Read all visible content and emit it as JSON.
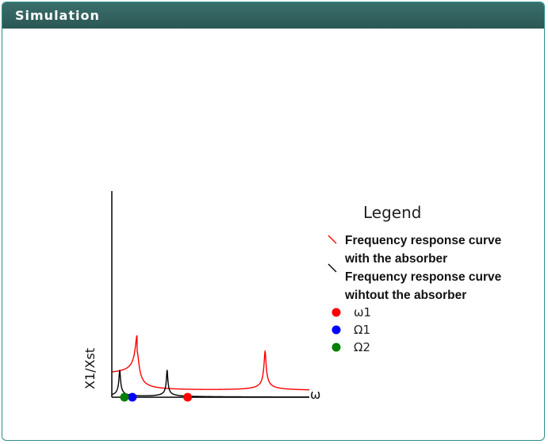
{
  "panel": {
    "title": "Simulation"
  },
  "chart_data": {
    "type": "line",
    "xlabel": "ω",
    "ylabel": "X1/Xst",
    "legend": {
      "title": "Legend",
      "placement": "right",
      "lines": [
        {
          "text1": "Frequency response curve",
          "text2": "with the absorber",
          "color": "#ff0000"
        },
        {
          "text1": "Frequency response curve",
          "text2": "wihtout the absorber",
          "color": "#000000"
        }
      ],
      "markers": [
        {
          "label": "ω1",
          "color": "#ff0000"
        },
        {
          "label": "Ω1",
          "color": "#0000ff"
        },
        {
          "label": "Ω2",
          "color": "#008000"
        }
      ]
    },
    "xlim": [
      0,
      1.25
    ],
    "ylim": [
      0,
      1
    ],
    "series": [
      {
        "color": "#ff0000",
        "peaks": [
          0.16,
          0.97
        ],
        "widths": [
          0.011,
          0.006
        ],
        "floor": 0.03,
        "level": 0.19
      },
      {
        "color": "#000000",
        "peaks": [
          0.05,
          0.35
        ],
        "widths": [
          0.0045,
          0.004
        ],
        "floor": 0.0,
        "level": 0.13
      }
    ],
    "points": [
      {
        "label": "ω1",
        "x": 0.48,
        "y": 0.0,
        "color": "#ff0000"
      },
      {
        "label": "Ω1",
        "x": 0.13,
        "y": 0.0,
        "color": "#0000ff"
      },
      {
        "label": "Ω2",
        "x": 0.08,
        "y": 0.0,
        "color": "#008000"
      }
    ]
  }
}
